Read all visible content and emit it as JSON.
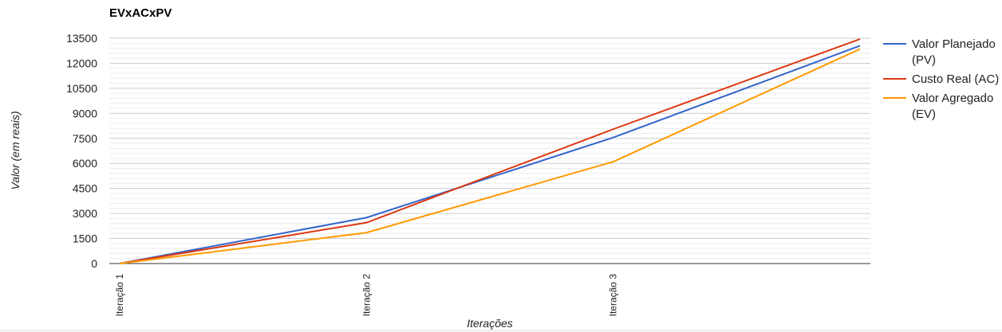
{
  "chart_data": {
    "type": "line",
    "title": "EVxACxPV",
    "xlabel": "Iterações",
    "ylabel": "Valor (em reais)",
    "x": [
      1,
      2,
      3,
      4
    ],
    "tick_labels": [
      {
        "x": 1,
        "label": "Iteração 1"
      },
      {
        "x": 2,
        "label": "Iteração 2"
      },
      {
        "x": 3,
        "label": "Iteração 3"
      }
    ],
    "xlim": [
      1,
      4
    ],
    "ylim": [
      0,
      13500
    ],
    "yticks": [
      0,
      1500,
      3000,
      4500,
      6000,
      7500,
      9000,
      10500,
      12000,
      13500
    ],
    "grid": true,
    "legend_position": "right",
    "series": [
      {
        "name": "Valor Planejado (PV)",
        "legend_lines": [
          "Valor Planejado",
          "(PV)"
        ],
        "color": "#3366cc",
        "values": [
          0,
          2750,
          7550,
          13050
        ]
      },
      {
        "name": "Custo Real (AC)",
        "legend_lines": [
          "Custo Real (AC)"
        ],
        "color": "#dc3912",
        "values": [
          0,
          2450,
          8050,
          13450
        ]
      },
      {
        "name": "Valor Agregado (EV)",
        "legend_lines": [
          "Valor Agregado",
          "(EV)"
        ],
        "color": "#ff9900",
        "values": [
          0,
          1850,
          6100,
          12850
        ]
      }
    ]
  }
}
